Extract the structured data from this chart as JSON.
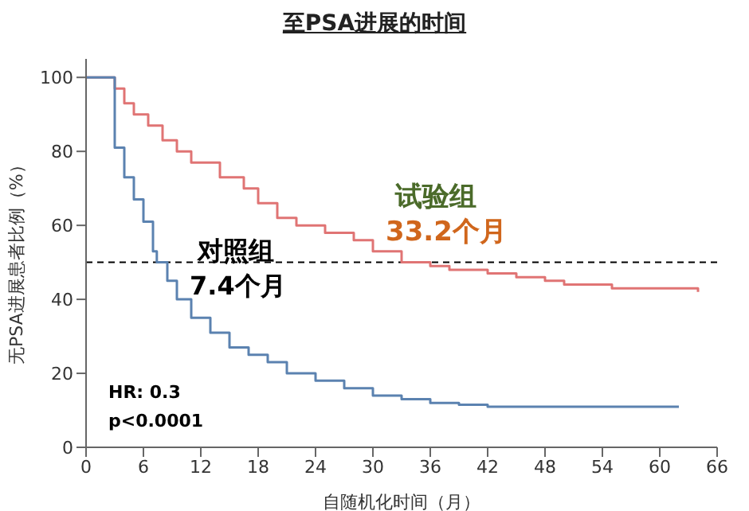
{
  "chart_data": {
    "type": "step",
    "title": "至PSA进展的时间",
    "xlabel": "自随机化时间（月）",
    "ylabel": "无PSA进展患者比例（%）",
    "series": [
      {
        "color": "#e07474",
        "x": [
          0,
          2.7,
          3,
          4,
          5,
          6.5,
          8,
          9.5,
          11,
          14,
          16.5,
          18,
          20,
          22,
          25,
          28,
          30,
          33,
          36,
          38,
          42,
          45,
          48,
          50,
          55,
          64
        ],
        "values": [
          100,
          100,
          97,
          93,
          90,
          87,
          83,
          80,
          77,
          73,
          70,
          66,
          62,
          60,
          58,
          56,
          53,
          50,
          49,
          48,
          47,
          46,
          45,
          44,
          43,
          42
        ]
      },
      {
        "color": "#5b82b0",
        "x": [
          0,
          2.7,
          3,
          4,
          5,
          6,
          7,
          7.4,
          8.5,
          9.5,
          11,
          13,
          15,
          17,
          19,
          21,
          24,
          27,
          30,
          33,
          36,
          39,
          42,
          62
        ],
        "values": [
          100,
          100,
          81,
          73,
          67,
          61,
          53,
          50,
          45,
          40,
          35,
          31,
          27,
          25,
          23,
          20,
          18,
          16,
          14,
          13,
          12,
          11.5,
          11,
          11
        ]
      }
    ],
    "xlim": [
      0,
      66
    ],
    "xticks": [
      0,
      6,
      12,
      18,
      24,
      30,
      36,
      42,
      48,
      54,
      60,
      66
    ],
    "ylim": [
      0,
      105
    ],
    "yticks": [
      0,
      20,
      40,
      60,
      80,
      100
    ],
    "ref_lines": [
      {
        "axis": "y",
        "value": 50,
        "line_style": "dashed",
        "color": "#000000"
      }
    ],
    "annotations": [
      "试验组",
      "33.2个月",
      "对照组",
      "7.4个月",
      "HR: 0.3",
      "p<0.0001"
    ],
    "grid": false,
    "legend": false,
    "marker": "none",
    "line_style": "solid"
  }
}
